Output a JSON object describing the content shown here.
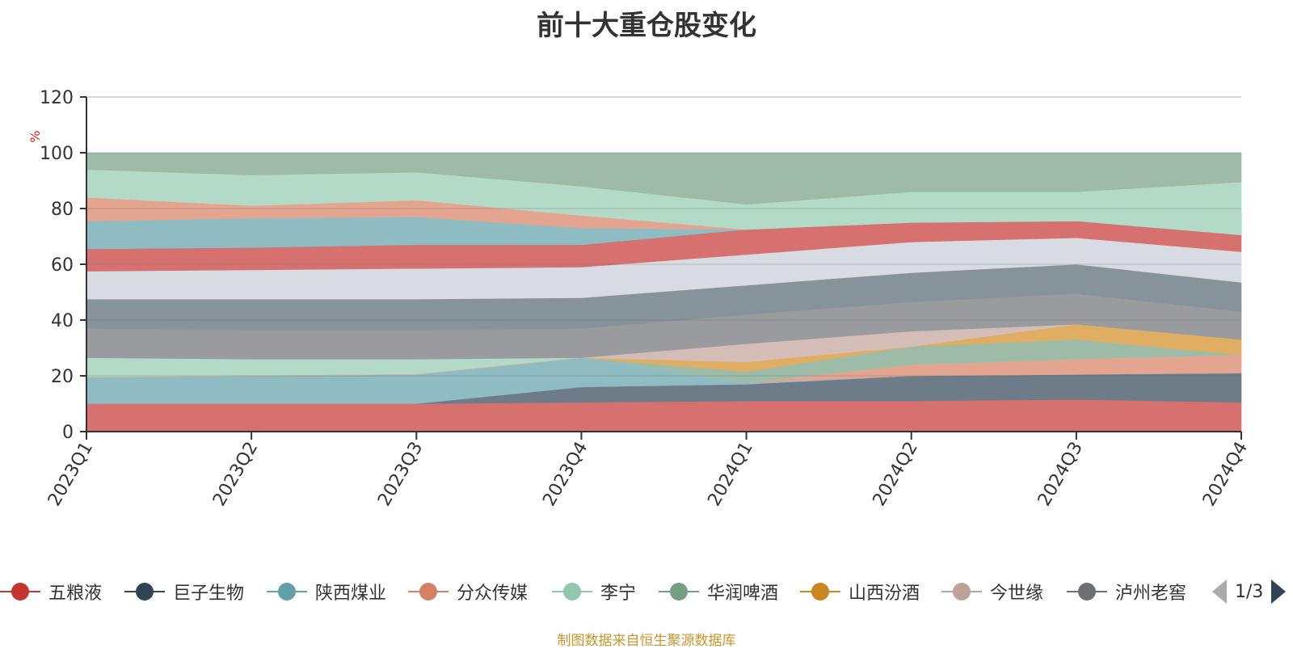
{
  "title": "前十大重仓股变化",
  "footnote": "制图数据来自恒生聚源数据库",
  "pager": {
    "text": "1/3"
  },
  "legend": [
    {
      "name": "五粮液",
      "color": "#c23531"
    },
    {
      "name": "巨子生物",
      "color": "#2f4554"
    },
    {
      "name": "陕西煤业",
      "color": "#61a0a8"
    },
    {
      "name": "分众传媒",
      "color": "#d48265"
    },
    {
      "name": "李宁",
      "color": "#91c7ae"
    },
    {
      "name": "华润啤酒",
      "color": "#749f83"
    },
    {
      "name": "山西汾酒",
      "color": "#ca8622"
    },
    {
      "name": "今世缘",
      "color": "#bda29a"
    },
    {
      "name": "泸州老窖",
      "color": "#6e7074"
    }
  ],
  "chart_data": {
    "type": "area",
    "stacked": true,
    "title": "前十大重仓股变化",
    "ylabel": "%",
    "ylim": [
      0,
      120
    ],
    "yticks": [
      0,
      20,
      40,
      60,
      80,
      100,
      120
    ],
    "categories": [
      "2023Q1",
      "2023Q2",
      "2023Q3",
      "2023Q4",
      "2024Q1",
      "2024Q2",
      "2024Q3",
      "2024Q4"
    ],
    "bands": [
      {
        "color": "#d6716f",
        "lower": [
          0,
          0,
          0,
          0,
          0,
          0,
          0,
          0
        ],
        "upper": [
          10,
          10,
          10,
          10.5,
          11,
          11,
          11.5,
          10.5
        ]
      },
      {
        "color": "#6e7b88",
        "lower": [
          10,
          10,
          10,
          10.5,
          11,
          11,
          11.5,
          10.5
        ],
        "upper": [
          10,
          10,
          10,
          16,
          17,
          20,
          20.5,
          21
        ]
      },
      {
        "color": "#8fbcc2",
        "lower": [
          10,
          10,
          10,
          16,
          17,
          20,
          20.5,
          21
        ],
        "upper": [
          19.5,
          20,
          20.5,
          26.5,
          17.5,
          20,
          20.5,
          21
        ]
      },
      {
        "color": "#e4a590",
        "lower": [
          19.5,
          20,
          20.5,
          26.5,
          17.5,
          20,
          20.5,
          21
        ],
        "upper": [
          19.5,
          20,
          20.5,
          26.5,
          17.5,
          24,
          26,
          27.5
        ]
      },
      {
        "color": "#b2dac6",
        "lower": [
          19.5,
          20,
          20.5,
          26.5,
          17.5,
          24,
          26,
          27.5
        ],
        "upper": [
          26.5,
          26,
          26,
          26.5,
          17.5,
          24,
          26,
          27.5
        ]
      },
      {
        "color": "#9dbba6",
        "lower": [
          19.5,
          20,
          20.5,
          26.5,
          17.5,
          24,
          26,
          27.5
        ],
        "upper": [
          19.5,
          20,
          20.5,
          26.5,
          21.5,
          30.5,
          33,
          27.5
        ]
      },
      {
        "color": "#dfae62",
        "lower": [
          19.5,
          20,
          20.5,
          26.5,
          21.5,
          30.5,
          33,
          27.5
        ],
        "upper": [
          19.5,
          20,
          20.5,
          26.5,
          25,
          30.5,
          38.5,
          33
        ]
      },
      {
        "color": "#d4bdb7",
        "lower": [
          19.5,
          20,
          20.5,
          26.5,
          25,
          30.5,
          38.5,
          33
        ],
        "upper": [
          19.5,
          20,
          20.5,
          26.5,
          31.5,
          36,
          38.5,
          33
        ]
      },
      {
        "color": "#9a9b9e",
        "lower": [
          26.5,
          26,
          26,
          26.5,
          31.5,
          36,
          38.5,
          33
        ],
        "upper": [
          37,
          36.5,
          36.5,
          37,
          42,
          46.5,
          49.5,
          43
        ]
      },
      {
        "color": "#86939b",
        "lower": [
          37,
          36.5,
          36.5,
          37,
          42,
          46.5,
          49.5,
          43
        ],
        "upper": [
          47.5,
          47.5,
          47.5,
          48,
          52.5,
          57,
          60,
          53.5
        ]
      },
      {
        "color": "#d8dbe2",
        "lower": [
          47.5,
          47.5,
          47.5,
          48,
          52.5,
          57,
          60,
          53.5
        ],
        "upper": [
          57.5,
          58,
          58.5,
          59,
          63.5,
          68,
          69.5,
          64.5
        ]
      },
      {
        "color": "#d6716f",
        "lower": [
          57.5,
          58,
          58.5,
          59,
          63.5,
          68,
          69.5,
          64.5
        ],
        "upper": [
          65.5,
          66,
          67,
          67,
          72.5,
          75,
          75.5,
          70.5
        ]
      },
      {
        "color": "#6e7b88",
        "lower": [
          65.5,
          66,
          67,
          67,
          72.5,
          75,
          75.5,
          70.5
        ],
        "upper": [
          65.5,
          66,
          67,
          67,
          72.5,
          75,
          75.5,
          78.5
        ]
      },
      {
        "color": "#8fbcc2",
        "lower": [
          65.5,
          66,
          67,
          67,
          72.5,
          75,
          75.5,
          78.5
        ],
        "upper": [
          75.5,
          76.5,
          77,
          73,
          72.5,
          75,
          75.5,
          78.5
        ]
      },
      {
        "color": "#e4a590",
        "lower": [
          75.5,
          76.5,
          77,
          73,
          72.5,
          75,
          75.5,
          78.5
        ],
        "upper": [
          84,
          81,
          83,
          77.5,
          72.5,
          75,
          75.5,
          78.5
        ]
      },
      {
        "color": "#b2dac6",
        "lower": [
          84,
          81,
          83,
          77.5,
          72.5,
          75,
          75.5,
          70.5
        ],
        "upper": [
          94,
          92,
          93,
          88,
          81.5,
          86,
          86,
          89.5
        ]
      },
      {
        "color": "#9dbba6",
        "lower": [
          94,
          92,
          93,
          88,
          81.5,
          86,
          86,
          89.5
        ],
        "upper": [
          100,
          100,
          100,
          100,
          100,
          100,
          100,
          100
        ]
      }
    ]
  }
}
